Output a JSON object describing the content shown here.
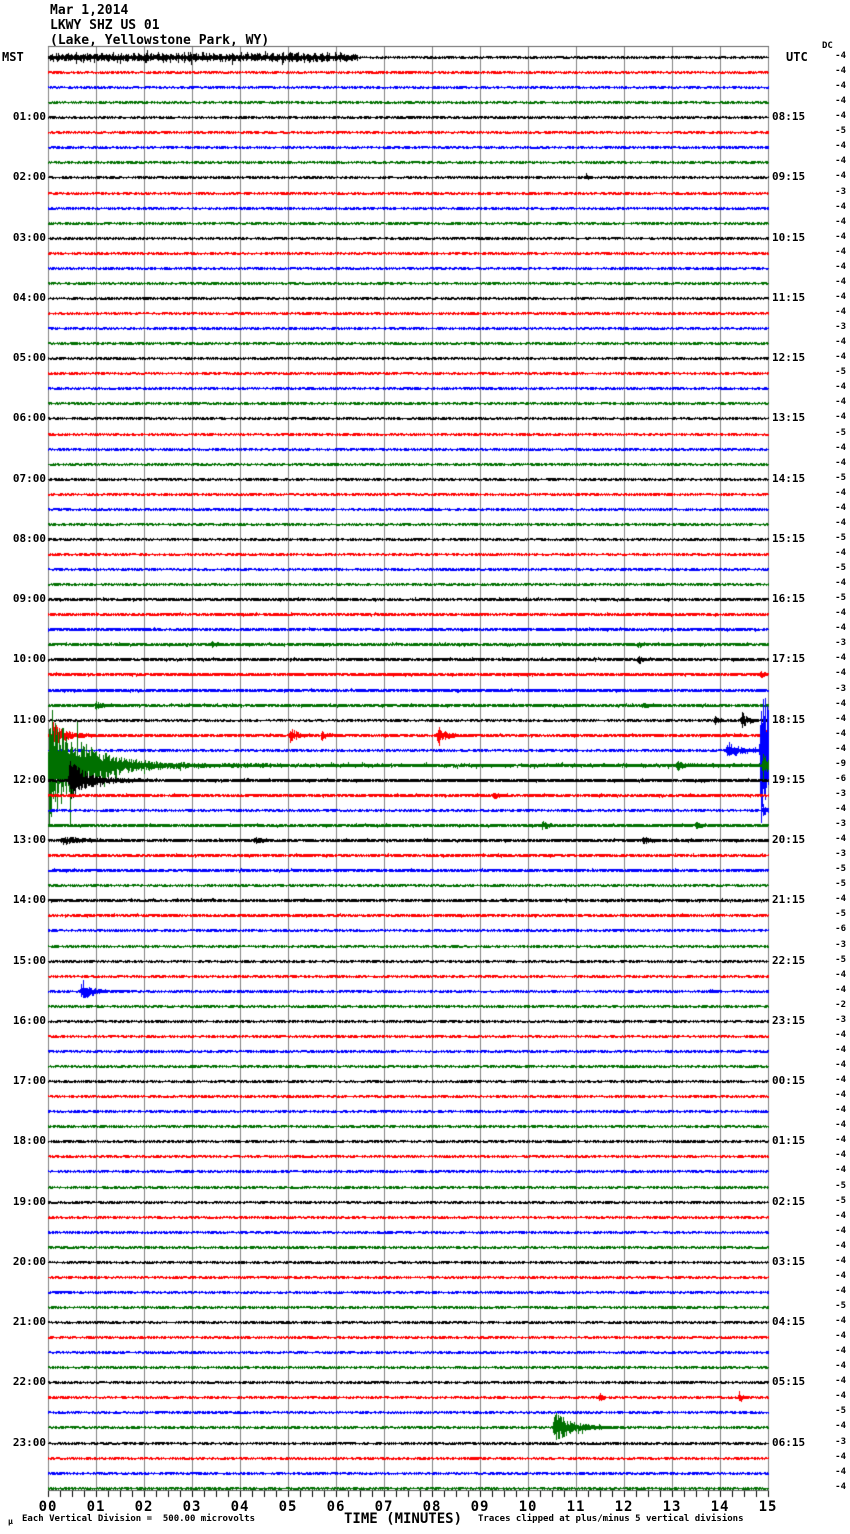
{
  "header": {
    "date": "Mar 1,2014",
    "station": "LKWY SHZ US 01",
    "location": "(Lake, Yellowstone Park, WY)"
  },
  "axes": {
    "left_timezone": "MST",
    "right_timezone": "UTC",
    "dc_header": "DC",
    "xlabel": "TIME (MINUTES)"
  },
  "footer": {
    "micro_symbol": "µ",
    "scale_note": "Each Vertical Division =  500.00 microvolts",
    "xlabel": "TIME (MINUTES)",
    "clip_note": "Traces clipped at plus/minus 5 vertical divisions"
  },
  "chart_data": {
    "type": "line",
    "title": "LKWY SHZ US 01 helicorder record, Mar 1,2014 (Lake, Yellowstone Park, WY)",
    "xlabel": "TIME (MINUTES)",
    "x_range_minutes": [
      0,
      15
    ],
    "minutes_per_row": 15,
    "rows": 96,
    "row_start_mst": "00:00",
    "scale_microvolts_per_division": 500.0,
    "clip_divisions": 5,
    "minute_labels": [
      "00",
      "01",
      "02",
      "03",
      "04",
      "05",
      "06",
      "07",
      "08",
      "09",
      "10",
      "11",
      "12",
      "13",
      "14",
      "15"
    ],
    "left_hour_labels": [
      "01:00",
      "02:00",
      "03:00",
      "04:00",
      "05:00",
      "06:00",
      "07:00",
      "08:00",
      "09:00",
      "10:00",
      "11:00",
      "12:00",
      "13:00",
      "14:00",
      "15:00",
      "16:00",
      "17:00",
      "18:00",
      "19:00",
      "20:00",
      "21:00",
      "22:00",
      "23:00"
    ],
    "right_hour_labels": [
      "08:15",
      "09:15",
      "10:15",
      "11:15",
      "12:15",
      "13:15",
      "14:15",
      "15:15",
      "16:15",
      "17:15",
      "18:15",
      "19:15",
      "20:15",
      "21:15",
      "22:15",
      "23:15",
      "00:15",
      "01:15",
      "02:15",
      "03:15",
      "04:15",
      "05:15",
      "06:15"
    ],
    "dc_values": [
      -4,
      -4,
      -4,
      -4,
      -4,
      -5,
      -4,
      -4,
      -4,
      -3,
      -4,
      -4,
      -4,
      -4,
      -4,
      -4,
      -4,
      -4,
      -3,
      -4,
      -4,
      -5,
      -4,
      -4,
      -4,
      -5,
      -4,
      -4,
      -5,
      -4,
      -4,
      -4,
      -5,
      -4,
      -5,
      -4,
      -5,
      -4,
      -4,
      -3,
      -4,
      -4,
      -3,
      -4,
      -4,
      -4,
      -4,
      -9,
      -6,
      -3,
      -4,
      -3,
      -4,
      -3,
      -5,
      -5,
      -4,
      -5,
      -6,
      -3,
      -5,
      -4,
      -4,
      -2,
      -3,
      -4,
      -4,
      -4,
      -4,
      -4,
      -4,
      -4,
      -4,
      -4,
      -4,
      -5,
      -5,
      -4,
      -4,
      -4,
      -4,
      -4,
      -4,
      -5,
      -4,
      -4,
      -4,
      -4,
      -4,
      -4,
      -5,
      -4,
      -3,
      -4,
      -4,
      -4
    ],
    "trace_colors": [
      "#000000",
      "#ff0000",
      "#0000ff",
      "#007000"
    ],
    "grid_color": "#808080",
    "frame_color": "#606060",
    "default_base_noise": 0.8,
    "base_overrides": {
      "36": 1.0,
      "37": 1.0,
      "38": 1.1,
      "39": 1.2,
      "40": 1.1,
      "41": 1.2,
      "42": 1.2,
      "43": 1.2,
      "45": 1.1,
      "47": 1.6,
      "48": 1.4,
      "49": 1.2,
      "51": 1.3,
      "52": 1.2,
      "53": 1.1,
      "54": 1.1,
      "56": 1.1,
      "57": 1.0
    },
    "events": {
      "0": [
        {
          "burst": true,
          "from": 0,
          "to": 6.45,
          "a": 5.5
        }
      ],
      "8": [
        {
          "m": 11.2,
          "a": 4,
          "d": 0.05
        }
      ],
      "39": [
        {
          "m": 3.4,
          "a": 3,
          "d": 0.1
        },
        {
          "m": 12.3,
          "a": 3,
          "d": 0.08
        }
      ],
      "40": [
        {
          "m": 12.3,
          "a": 3,
          "d": 0.06
        }
      ],
      "41": [
        {
          "m": 14.85,
          "a": 4,
          "d": 0.05
        }
      ],
      "43": [
        {
          "m": 1.0,
          "a": 3,
          "d": 0.1
        },
        {
          "m": 12.4,
          "a": 3,
          "d": 0.08
        }
      ],
      "44": [
        {
          "m": 13.9,
          "a": 4,
          "d": 0.08
        },
        {
          "m": 14.45,
          "a": 9,
          "d": 0.12
        }
      ],
      "45": [
        {
          "m": 0.1,
          "a": 13,
          "d": 0.25
        },
        {
          "m": 5.05,
          "a": 8,
          "d": 0.12
        },
        {
          "m": 5.7,
          "a": 4,
          "d": 0.1
        },
        {
          "m": 8.13,
          "a": 11,
          "d": 0.12
        },
        {
          "m": 14.9,
          "a": 12,
          "d": 0.1
        }
      ],
      "46": [
        {
          "m": 14.15,
          "a": 9,
          "d": 0.25
        },
        {
          "m": 14.85,
          "a": 75,
          "d": 0.25
        }
      ],
      "47": [
        {
          "m": 0.02,
          "a": 60,
          "d": 0.7
        },
        {
          "m": 13.1,
          "a": 5,
          "d": 0.1
        },
        {
          "m": 14.9,
          "a": 14,
          "d": 0.08
        }
      ],
      "48": [
        {
          "m": 0.45,
          "a": 20,
          "d": 0.35
        }
      ],
      "49": [
        {
          "m": 9.3,
          "a": 3,
          "d": 0.1
        }
      ],
      "50": [
        {
          "m": 14.9,
          "a": 7,
          "d": 0.06
        }
      ],
      "51": [
        {
          "m": 10.3,
          "a": 3.5,
          "d": 0.1
        },
        {
          "m": 13.5,
          "a": 3,
          "d": 0.08
        }
      ],
      "52": [
        {
          "m": 0.3,
          "a": 4,
          "d": 0.3
        },
        {
          "m": 4.3,
          "a": 3.5,
          "d": 0.1
        },
        {
          "m": 12.4,
          "a": 4,
          "d": 0.1
        }
      ],
      "62": [
        {
          "m": 0.7,
          "a": 9,
          "d": 0.2
        },
        {
          "m": 13.8,
          "a": 3,
          "d": 0.06
        }
      ],
      "89": [
        {
          "m": 11.5,
          "a": 6,
          "d": 0.04
        },
        {
          "m": 14.4,
          "a": 7,
          "d": 0.05
        }
      ],
      "91": [
        {
          "m": 10.55,
          "a": 16,
          "d": 0.35
        }
      ]
    }
  }
}
